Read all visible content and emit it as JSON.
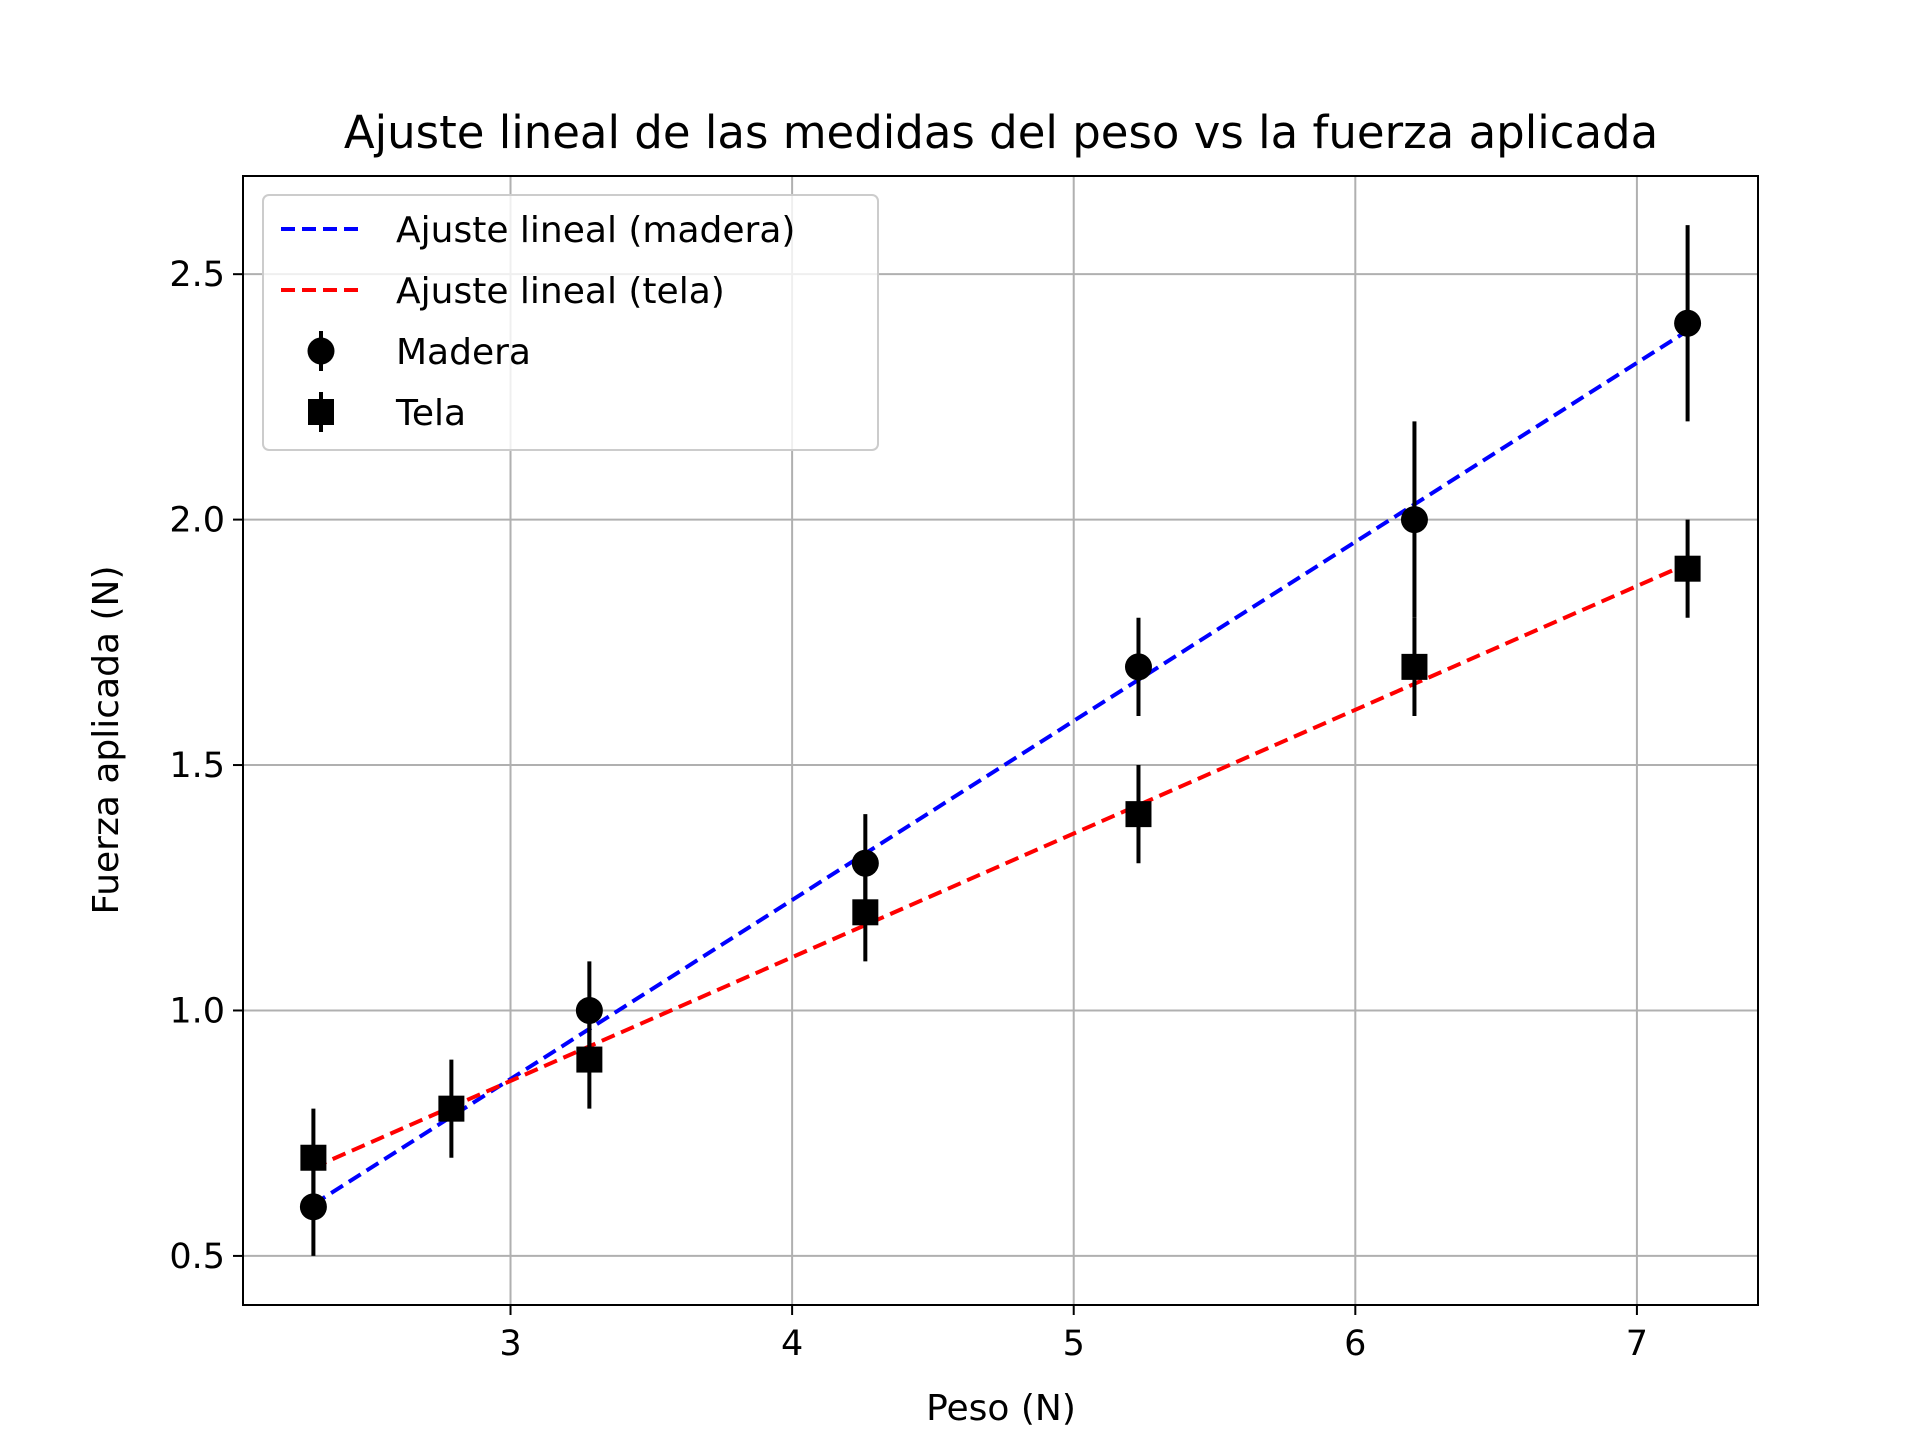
{
  "chart_data": {
    "type": "scatter",
    "title": "Ajuste lineal de las medidas del peso vs la fuerza aplicada",
    "xlabel": "Peso (N)",
    "ylabel": "Fuerza aplicada (N)",
    "xlim": [
      2.05,
      7.43
    ],
    "ylim": [
      0.4,
      2.7
    ],
    "xticks": [
      3,
      4,
      5,
      6,
      7
    ],
    "yticks": [
      0.5,
      1.0,
      1.5,
      2.0,
      2.5
    ],
    "xtick_labels": [
      "3",
      "4",
      "5",
      "6",
      "7"
    ],
    "ytick_labels": [
      "0.5",
      "1.0",
      "1.5",
      "2.0",
      "2.5"
    ],
    "grid": true,
    "legend_position": "upper-left",
    "series": [
      {
        "name": "Madera",
        "kind": "errorbar",
        "marker": "circle",
        "color": "#000000",
        "x": [
          2.3,
          3.28,
          4.26,
          5.23,
          6.21,
          7.18
        ],
        "y": [
          0.6,
          1.0,
          1.3,
          1.7,
          2.0,
          2.4
        ],
        "yerr": [
          0.1,
          0.1,
          0.1,
          0.1,
          0.2,
          0.2
        ]
      },
      {
        "name": "Tela",
        "kind": "errorbar",
        "marker": "square",
        "color": "#000000",
        "x": [
          2.3,
          2.79,
          3.28,
          4.26,
          5.23,
          6.21,
          7.18
        ],
        "y": [
          0.7,
          0.8,
          0.9,
          1.2,
          1.4,
          1.7,
          1.9
        ],
        "yerr": [
          0.1,
          0.1,
          0.1,
          0.1,
          0.1,
          0.1,
          0.1
        ]
      },
      {
        "name": "Ajuste lineal (madera)",
        "kind": "line",
        "dashed": true,
        "color": "#0000ff",
        "x": [
          2.3,
          7.18
        ],
        "y": [
          0.605,
          2.385
        ]
      },
      {
        "name": "Ajuste lineal (tela)",
        "kind": "line",
        "dashed": true,
        "color": "#ff0000",
        "x": [
          2.3,
          7.18
        ],
        "y": [
          0.68,
          1.91
        ]
      }
    ],
    "legend_order": [
      "Ajuste lineal (madera)",
      "Ajuste lineal (tela)",
      "Madera",
      "Tela"
    ]
  }
}
